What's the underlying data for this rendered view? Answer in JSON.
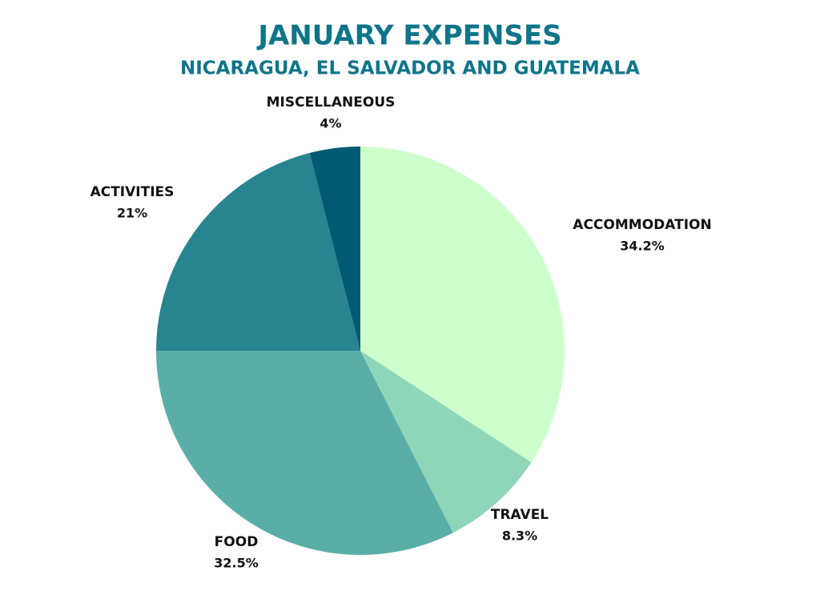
{
  "chart_data": {
    "type": "pie",
    "title": "JANUARY EXPENSES",
    "subtitle": "NICARAGUA, EL SALVADOR AND GUATEMALA",
    "categories": [
      "ACCOMMODATION",
      "TRAVEL",
      "FOOD",
      "ACTIVITIES",
      "MISCELLANEOUS"
    ],
    "values": [
      34.2,
      8.3,
      32.5,
      21,
      4
    ],
    "value_labels": [
      "34.2%",
      "8.3%",
      "32.5%",
      "21%",
      "4%"
    ],
    "colors": [
      "#ccffcc",
      "#8fd6b9",
      "#5aaea8",
      "#288490",
      "#005a72"
    ]
  }
}
